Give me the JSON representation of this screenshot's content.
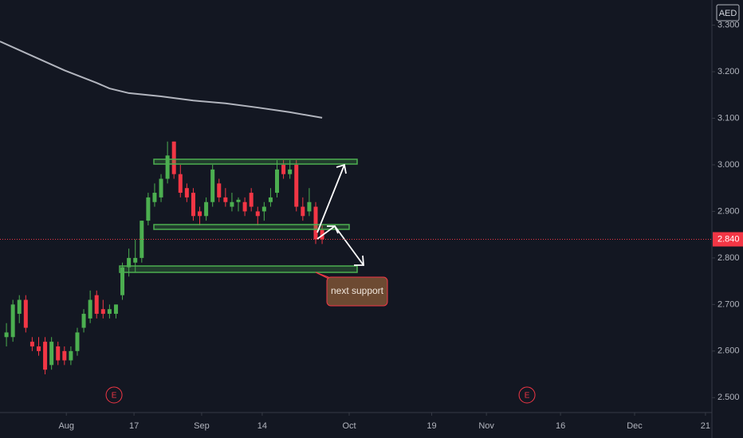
{
  "chart_data": {
    "type": "candlestick",
    "currency": "AED",
    "x": [
      1,
      2,
      3,
      4,
      5,
      6,
      7,
      8,
      9,
      10,
      11,
      12,
      13,
      14,
      15,
      16,
      17,
      18,
      19,
      20,
      21,
      22,
      23,
      24,
      25,
      26,
      27,
      28,
      29,
      30,
      31,
      32,
      33,
      34,
      35,
      36,
      37,
      38,
      39,
      40,
      41,
      42,
      43,
      44,
      45,
      46,
      47,
      48,
      49,
      50
    ],
    "open": [
      2.63,
      2.63,
      2.68,
      2.71,
      2.62,
      2.61,
      2.62,
      2.57,
      2.61,
      2.6,
      2.58,
      2.6,
      2.65,
      2.67,
      2.72,
      2.69,
      2.68,
      2.68,
      2.72,
      2.78,
      2.79,
      2.8,
      2.88,
      2.92,
      2.93,
      2.97,
      3.05,
      2.98,
      2.95,
      2.94,
      2.9,
      2.89,
      2.92,
      2.96,
      2.93,
      2.91,
      2.92,
      2.92,
      2.94,
      2.9,
      2.9,
      2.92,
      2.94,
      3.0,
      2.98,
      3.0,
      2.91,
      2.9,
      2.91,
      2.86
    ],
    "high": [
      2.66,
      2.71,
      2.72,
      2.72,
      2.63,
      2.63,
      2.63,
      2.63,
      2.62,
      2.61,
      2.61,
      2.65,
      2.69,
      2.73,
      2.73,
      2.71,
      2.7,
      2.7,
      2.79,
      2.82,
      2.84,
      2.88,
      2.94,
      2.96,
      2.98,
      3.05,
      3.05,
      3.0,
      2.96,
      2.95,
      2.91,
      2.93,
      3.0,
      2.97,
      2.95,
      2.94,
      2.93,
      2.93,
      2.95,
      2.91,
      2.92,
      2.95,
      3.01,
      3.01,
      3.01,
      3.01,
      2.93,
      2.95,
      2.92,
      2.87
    ],
    "low": [
      2.61,
      2.62,
      2.66,
      2.64,
      2.6,
      2.59,
      2.55,
      2.56,
      2.57,
      2.57,
      2.57,
      2.59,
      2.64,
      2.66,
      2.67,
      2.67,
      2.67,
      2.67,
      2.71,
      2.76,
      2.77,
      2.79,
      2.87,
      2.91,
      2.92,
      2.96,
      2.97,
      2.93,
      2.92,
      2.88,
      2.87,
      2.88,
      2.91,
      2.92,
      2.91,
      2.9,
      2.9,
      2.89,
      2.9,
      2.87,
      2.88,
      2.91,
      2.93,
      2.97,
      2.97,
      2.9,
      2.88,
      2.89,
      2.83,
      2.83
    ],
    "close": [
      2.64,
      2.7,
      2.71,
      2.65,
      2.61,
      2.6,
      2.56,
      2.62,
      2.58,
      2.58,
      2.6,
      2.64,
      2.68,
      2.71,
      2.68,
      2.68,
      2.69,
      2.7,
      2.78,
      2.8,
      2.8,
      2.88,
      2.93,
      2.94,
      2.97,
      3.02,
      2.98,
      2.94,
      2.93,
      2.89,
      2.89,
      2.92,
      2.99,
      2.93,
      2.92,
      2.92,
      2.925,
      2.9,
      2.91,
      2.89,
      2.91,
      2.93,
      2.99,
      2.98,
      2.99,
      2.91,
      2.89,
      2.92,
      2.84,
      2.84
    ],
    "up_color": "#4caf50",
    "down_color": "#f23645",
    "ma": {
      "color": "#b2b5be",
      "x": [
        0,
        5,
        10,
        15,
        17,
        20,
        25,
        30,
        35,
        40,
        45,
        50
      ],
      "values": [
        3.265,
        3.234,
        3.203,
        3.176,
        3.164,
        3.154,
        3.147,
        3.138,
        3.132,
        3.123,
        3.113,
        3.101
      ]
    },
    "last_price": {
      "value": 2.84,
      "label": "2.840",
      "color": "#f23645"
    },
    "events": [
      {
        "x": 17.7,
        "label": "E"
      },
      {
        "x": 81.8,
        "label": "E"
      }
    ],
    "annotation": "next support",
    "xlim": [
      0,
      110.5
    ],
    "xticks": [
      {
        "value": 10.3,
        "label": "Aug"
      },
      {
        "value": 20.8,
        "label": "17"
      },
      {
        "value": 31.3,
        "label": "Sep"
      },
      {
        "value": 40.7,
        "label": "14"
      },
      {
        "value": 54.2,
        "label": "Oct"
      },
      {
        "value": 67,
        "label": "19"
      },
      {
        "value": 75.5,
        "label": "Nov"
      },
      {
        "value": 87,
        "label": "16"
      },
      {
        "value": 98.5,
        "label": "Dec"
      },
      {
        "value": 109.5,
        "label": "21"
      }
    ],
    "ylim": [
      2.468,
      3.354
    ],
    "yticks": [
      {
        "value": 2.5,
        "label": "2.500"
      },
      {
        "value": 2.6,
        "label": "2.600"
      },
      {
        "value": 2.7,
        "label": "2.700"
      },
      {
        "value": 2.8,
        "label": "2.800"
      },
      {
        "value": 2.9,
        "label": "2.900"
      },
      {
        "value": 3.0,
        "label": "3.000"
      },
      {
        "value": 3.1,
        "label": "3.100"
      },
      {
        "value": 3.2,
        "label": "3.200"
      },
      {
        "value": 3.3,
        "label": "3.300"
      }
    ]
  }
}
